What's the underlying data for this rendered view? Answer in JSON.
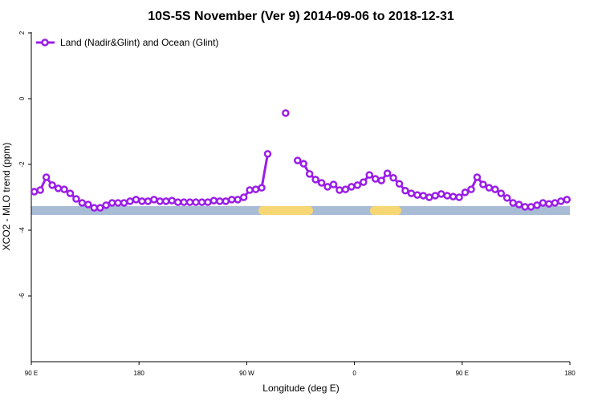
{
  "chart_data": {
    "type": "line",
    "title": "10S-5S November (Ver 9)   2014-09-06 to 2018-12-31",
    "x_label": "Longitude (deg E)",
    "y_label": "XCO2 - MLO trend (ppm)",
    "xlim": [
      90,
      540
    ],
    "xticks": [
      {
        "value": 90,
        "label": "90 E"
      },
      {
        "value": 180,
        "label": "180"
      },
      {
        "value": 270,
        "label": "90 W"
      },
      {
        "value": 360,
        "label": "0"
      },
      {
        "value": 450,
        "label": "90 E"
      },
      {
        "value": 540,
        "label": "180"
      }
    ],
    "ylim": [
      -8,
      2
    ],
    "yticks": [
      2,
      0,
      -2,
      -4,
      -6
    ],
    "legend": "top-left",
    "x": [
      92.5,
      97.5,
      102.5,
      107.5,
      112.5,
      117.5,
      122.5,
      127.5,
      132.5,
      137.5,
      142.5,
      147.5,
      152.5,
      157.5,
      162.5,
      167.5,
      172.5,
      177.5,
      182.5,
      187.5,
      192.5,
      197.5,
      202.5,
      207.5,
      212.5,
      217.5,
      222.5,
      227.5,
      232.5,
      237.5,
      242.5,
      247.5,
      252.5,
      257.5,
      262.5,
      267.5,
      272.5,
      277.5,
      282.5,
      287.5,
      292.5,
      297.5,
      302.5,
      307.5,
      312.5,
      317.5,
      322.5,
      327.5,
      332.5,
      337.5,
      342.5,
      347.5,
      352.5,
      357.5,
      362.5,
      367.5,
      372.5,
      377.5,
      382.5,
      387.5,
      392.5,
      397.5,
      402.5,
      407.5,
      412.5,
      417.5,
      422.5,
      427.5,
      432.5,
      437.5,
      442.5,
      447.5,
      452.5,
      457.5,
      462.5,
      467.5,
      472.5,
      477.5,
      482.5,
      487.5,
      492.5,
      497.5,
      502.5,
      507.5,
      512.5,
      517.5,
      522.5,
      527.5,
      532.5,
      537.5
    ],
    "series": [
      {
        "name": "Land (Nadir&Glint) and Ocean (Glint)",
        "color": "#9b1de8",
        "values": [
          -2.83,
          -2.78,
          -2.39,
          -2.63,
          -2.73,
          -2.76,
          -2.88,
          -3.05,
          -3.17,
          -3.22,
          -3.32,
          -3.32,
          -3.24,
          -3.17,
          -3.17,
          -3.17,
          -3.12,
          -3.07,
          -3.12,
          -3.12,
          -3.07,
          -3.12,
          -3.12,
          -3.1,
          -3.15,
          -3.15,
          -3.15,
          -3.15,
          -3.15,
          -3.15,
          -3.1,
          -3.12,
          -3.12,
          -3.07,
          -3.07,
          -3.0,
          -2.78,
          -2.76,
          -2.71,
          -1.68,
          null,
          null,
          -0.44,
          null,
          -1.88,
          -1.98,
          -2.29,
          -2.46,
          -2.56,
          -2.68,
          -2.61,
          -2.78,
          -2.76,
          -2.68,
          -2.63,
          -2.54,
          -2.32,
          -2.44,
          -2.49,
          -2.27,
          -2.41,
          -2.59,
          -2.8,
          -2.88,
          -2.93,
          -2.95,
          -3.0,
          -2.95,
          -2.9,
          -2.95,
          -2.98,
          -3.0,
          -2.85,
          -2.76,
          -2.39,
          -2.61,
          -2.71,
          -2.76,
          -2.88,
          -3.02,
          -3.17,
          -3.22,
          -3.29,
          -3.29,
          -3.24,
          -3.17,
          -3.2,
          -3.17,
          -3.12,
          -3.07
        ]
      }
    ]
  }
}
